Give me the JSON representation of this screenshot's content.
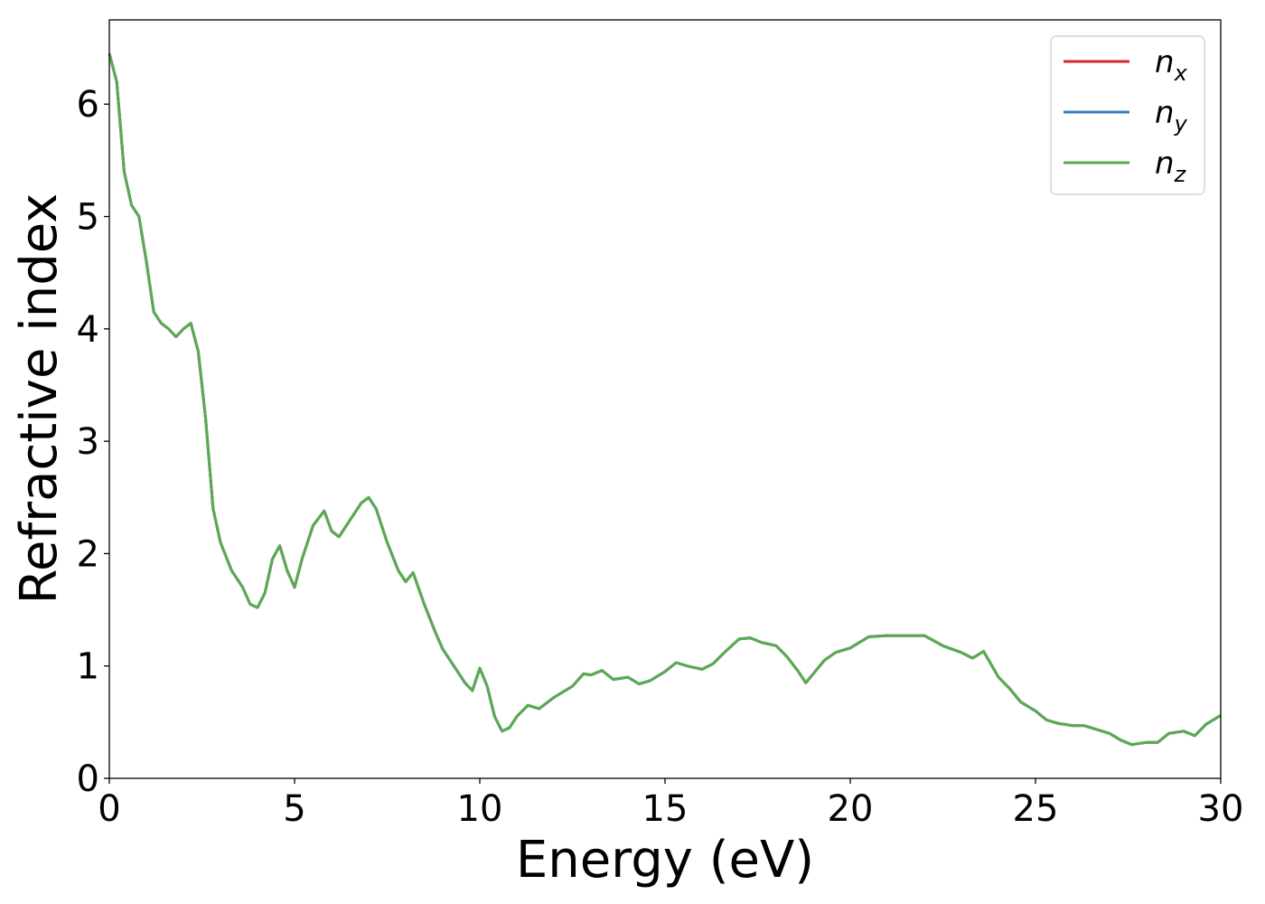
{
  "chart_data": {
    "type": "line",
    "xlabel": "Energy (eV)",
    "ylabel": "Refractive index",
    "xlim": [
      0,
      30
    ],
    "ylim": [
      0,
      6.75
    ],
    "xticks": [
      0,
      5,
      10,
      15,
      20,
      25,
      30
    ],
    "yticks": [
      0,
      1,
      2,
      3,
      4,
      5,
      6
    ],
    "grid": false,
    "legend_position": "top-right",
    "series": [
      {
        "name": "n_x",
        "label_base": "n",
        "label_sub": "x",
        "color": "#d62728",
        "x": [
          0,
          0.2,
          0.4,
          0.6,
          0.8,
          1.0,
          1.2,
          1.4,
          1.6,
          1.8,
          2.0,
          2.2,
          2.4,
          2.6,
          2.8,
          3.0,
          3.3,
          3.6,
          3.8,
          4.0,
          4.2,
          4.4,
          4.6,
          4.8,
          5.0,
          5.2,
          5.5,
          5.8,
          6.0,
          6.2,
          6.5,
          6.8,
          7.0,
          7.2,
          7.5,
          7.8,
          8.0,
          8.2,
          8.5,
          8.8,
          9.0,
          9.3,
          9.6,
          9.8,
          10.0,
          10.2,
          10.4,
          10.6,
          10.8,
          11.0,
          11.3,
          11.6,
          12.0,
          12.5,
          12.8,
          13.0,
          13.3,
          13.6,
          14.0,
          14.3,
          14.6,
          15.0,
          15.3,
          15.6,
          16.0,
          16.3,
          16.6,
          17.0,
          17.3,
          17.6,
          18.0,
          18.3,
          18.6,
          18.8,
          19.0,
          19.3,
          19.6,
          20.0,
          20.5,
          21.0,
          21.5,
          22.0,
          22.5,
          23.0,
          23.3,
          23.6,
          24.0,
          24.3,
          24.6,
          25.0,
          25.3,
          25.6,
          26.0,
          26.3,
          26.6,
          27.0,
          27.3,
          27.6,
          28.0,
          28.3,
          28.6,
          29.0,
          29.3,
          29.6,
          30.0
        ],
        "y": [
          6.45,
          6.2,
          5.4,
          5.1,
          5.0,
          4.6,
          4.15,
          4.05,
          4.0,
          3.93,
          4.0,
          4.05,
          3.8,
          3.2,
          2.4,
          2.1,
          1.85,
          1.7,
          1.55,
          1.52,
          1.65,
          1.95,
          2.07,
          1.85,
          1.7,
          1.95,
          2.25,
          2.38,
          2.2,
          2.15,
          2.3,
          2.45,
          2.5,
          2.4,
          2.1,
          1.85,
          1.75,
          1.83,
          1.55,
          1.3,
          1.15,
          1.0,
          0.85,
          0.78,
          0.98,
          0.82,
          0.55,
          0.42,
          0.45,
          0.55,
          0.65,
          0.62,
          0.72,
          0.82,
          0.93,
          0.92,
          0.96,
          0.88,
          0.9,
          0.84,
          0.87,
          0.95,
          1.03,
          1.0,
          0.97,
          1.02,
          1.12,
          1.24,
          1.25,
          1.21,
          1.18,
          1.08,
          0.95,
          0.85,
          0.93,
          1.05,
          1.12,
          1.16,
          1.26,
          1.27,
          1.27,
          1.27,
          1.18,
          1.12,
          1.07,
          1.13,
          0.9,
          0.8,
          0.68,
          0.6,
          0.52,
          0.49,
          0.47,
          0.47,
          0.44,
          0.4,
          0.34,
          0.3,
          0.32,
          0.32,
          0.4,
          0.42,
          0.38,
          0.48,
          0.56
        ]
      },
      {
        "name": "n_y",
        "label_base": "n",
        "label_sub": "y",
        "color": "#3a7bbf",
        "x": [
          0,
          0.2,
          0.4,
          0.6,
          0.8,
          1.0,
          1.2,
          1.4,
          1.6,
          1.8,
          2.0,
          2.2,
          2.4,
          2.6,
          2.8,
          3.0,
          3.3,
          3.6,
          3.8,
          4.0,
          4.2,
          4.4,
          4.6,
          4.8,
          5.0,
          5.2,
          5.5,
          5.8,
          6.0,
          6.2,
          6.5,
          6.8,
          7.0,
          7.2,
          7.5,
          7.8,
          8.0,
          8.2,
          8.5,
          8.8,
          9.0,
          9.3,
          9.6,
          9.8,
          10.0,
          10.2,
          10.4,
          10.6,
          10.8,
          11.0,
          11.3,
          11.6,
          12.0,
          12.5,
          12.8,
          13.0,
          13.3,
          13.6,
          14.0,
          14.3,
          14.6,
          15.0,
          15.3,
          15.6,
          16.0,
          16.3,
          16.6,
          17.0,
          17.3,
          17.6,
          18.0,
          18.3,
          18.6,
          18.8,
          19.0,
          19.3,
          19.6,
          20.0,
          20.5,
          21.0,
          21.5,
          22.0,
          22.5,
          23.0,
          23.3,
          23.6,
          24.0,
          24.3,
          24.6,
          25.0,
          25.3,
          25.6,
          26.0,
          26.3,
          26.6,
          27.0,
          27.3,
          27.6,
          28.0,
          28.3,
          28.6,
          29.0,
          29.3,
          29.6,
          30.0
        ],
        "y": [
          6.45,
          6.2,
          5.4,
          5.1,
          5.0,
          4.6,
          4.15,
          4.05,
          4.0,
          3.93,
          4.0,
          4.05,
          3.8,
          3.2,
          2.4,
          2.1,
          1.85,
          1.7,
          1.55,
          1.52,
          1.65,
          1.95,
          2.07,
          1.85,
          1.7,
          1.95,
          2.25,
          2.38,
          2.2,
          2.15,
          2.3,
          2.45,
          2.5,
          2.4,
          2.1,
          1.85,
          1.75,
          1.83,
          1.55,
          1.3,
          1.15,
          1.0,
          0.85,
          0.78,
          0.98,
          0.82,
          0.55,
          0.42,
          0.45,
          0.55,
          0.65,
          0.62,
          0.72,
          0.82,
          0.93,
          0.92,
          0.96,
          0.88,
          0.9,
          0.84,
          0.87,
          0.95,
          1.03,
          1.0,
          0.97,
          1.02,
          1.12,
          1.24,
          1.25,
          1.21,
          1.18,
          1.08,
          0.95,
          0.85,
          0.93,
          1.05,
          1.12,
          1.16,
          1.26,
          1.27,
          1.27,
          1.27,
          1.18,
          1.12,
          1.07,
          1.13,
          0.9,
          0.8,
          0.68,
          0.6,
          0.52,
          0.49,
          0.47,
          0.47,
          0.44,
          0.4,
          0.34,
          0.3,
          0.32,
          0.32,
          0.4,
          0.42,
          0.38,
          0.48,
          0.56
        ]
      },
      {
        "name": "n_z",
        "label_base": "n",
        "label_sub": "z",
        "color": "#5aab50",
        "x": [
          0,
          0.2,
          0.4,
          0.6,
          0.8,
          1.0,
          1.2,
          1.4,
          1.6,
          1.8,
          2.0,
          2.2,
          2.4,
          2.6,
          2.8,
          3.0,
          3.3,
          3.6,
          3.8,
          4.0,
          4.2,
          4.4,
          4.6,
          4.8,
          5.0,
          5.2,
          5.5,
          5.8,
          6.0,
          6.2,
          6.5,
          6.8,
          7.0,
          7.2,
          7.5,
          7.8,
          8.0,
          8.2,
          8.5,
          8.8,
          9.0,
          9.3,
          9.6,
          9.8,
          10.0,
          10.2,
          10.4,
          10.6,
          10.8,
          11.0,
          11.3,
          11.6,
          12.0,
          12.5,
          12.8,
          13.0,
          13.3,
          13.6,
          14.0,
          14.3,
          14.6,
          15.0,
          15.3,
          15.6,
          16.0,
          16.3,
          16.6,
          17.0,
          17.3,
          17.6,
          18.0,
          18.3,
          18.6,
          18.8,
          19.0,
          19.3,
          19.6,
          20.0,
          20.5,
          21.0,
          21.5,
          22.0,
          22.5,
          23.0,
          23.3,
          23.6,
          24.0,
          24.3,
          24.6,
          25.0,
          25.3,
          25.6,
          26.0,
          26.3,
          26.6,
          27.0,
          27.3,
          27.6,
          28.0,
          28.3,
          28.6,
          29.0,
          29.3,
          29.6,
          30.0
        ],
        "y": [
          6.45,
          6.2,
          5.4,
          5.1,
          5.0,
          4.6,
          4.15,
          4.05,
          4.0,
          3.93,
          4.0,
          4.05,
          3.8,
          3.2,
          2.4,
          2.1,
          1.85,
          1.7,
          1.55,
          1.52,
          1.65,
          1.95,
          2.07,
          1.85,
          1.7,
          1.95,
          2.25,
          2.38,
          2.2,
          2.15,
          2.3,
          2.45,
          2.5,
          2.4,
          2.1,
          1.85,
          1.75,
          1.83,
          1.55,
          1.3,
          1.15,
          1.0,
          0.85,
          0.78,
          0.98,
          0.82,
          0.55,
          0.42,
          0.45,
          0.55,
          0.65,
          0.62,
          0.72,
          0.82,
          0.93,
          0.92,
          0.96,
          0.88,
          0.9,
          0.84,
          0.87,
          0.95,
          1.03,
          1.0,
          0.97,
          1.02,
          1.12,
          1.24,
          1.25,
          1.21,
          1.18,
          1.08,
          0.95,
          0.85,
          0.93,
          1.05,
          1.12,
          1.16,
          1.26,
          1.27,
          1.27,
          1.27,
          1.18,
          1.12,
          1.07,
          1.13,
          0.9,
          0.8,
          0.68,
          0.6,
          0.52,
          0.49,
          0.47,
          0.47,
          0.44,
          0.4,
          0.34,
          0.3,
          0.32,
          0.32,
          0.4,
          0.42,
          0.38,
          0.48,
          0.56
        ]
      }
    ]
  }
}
